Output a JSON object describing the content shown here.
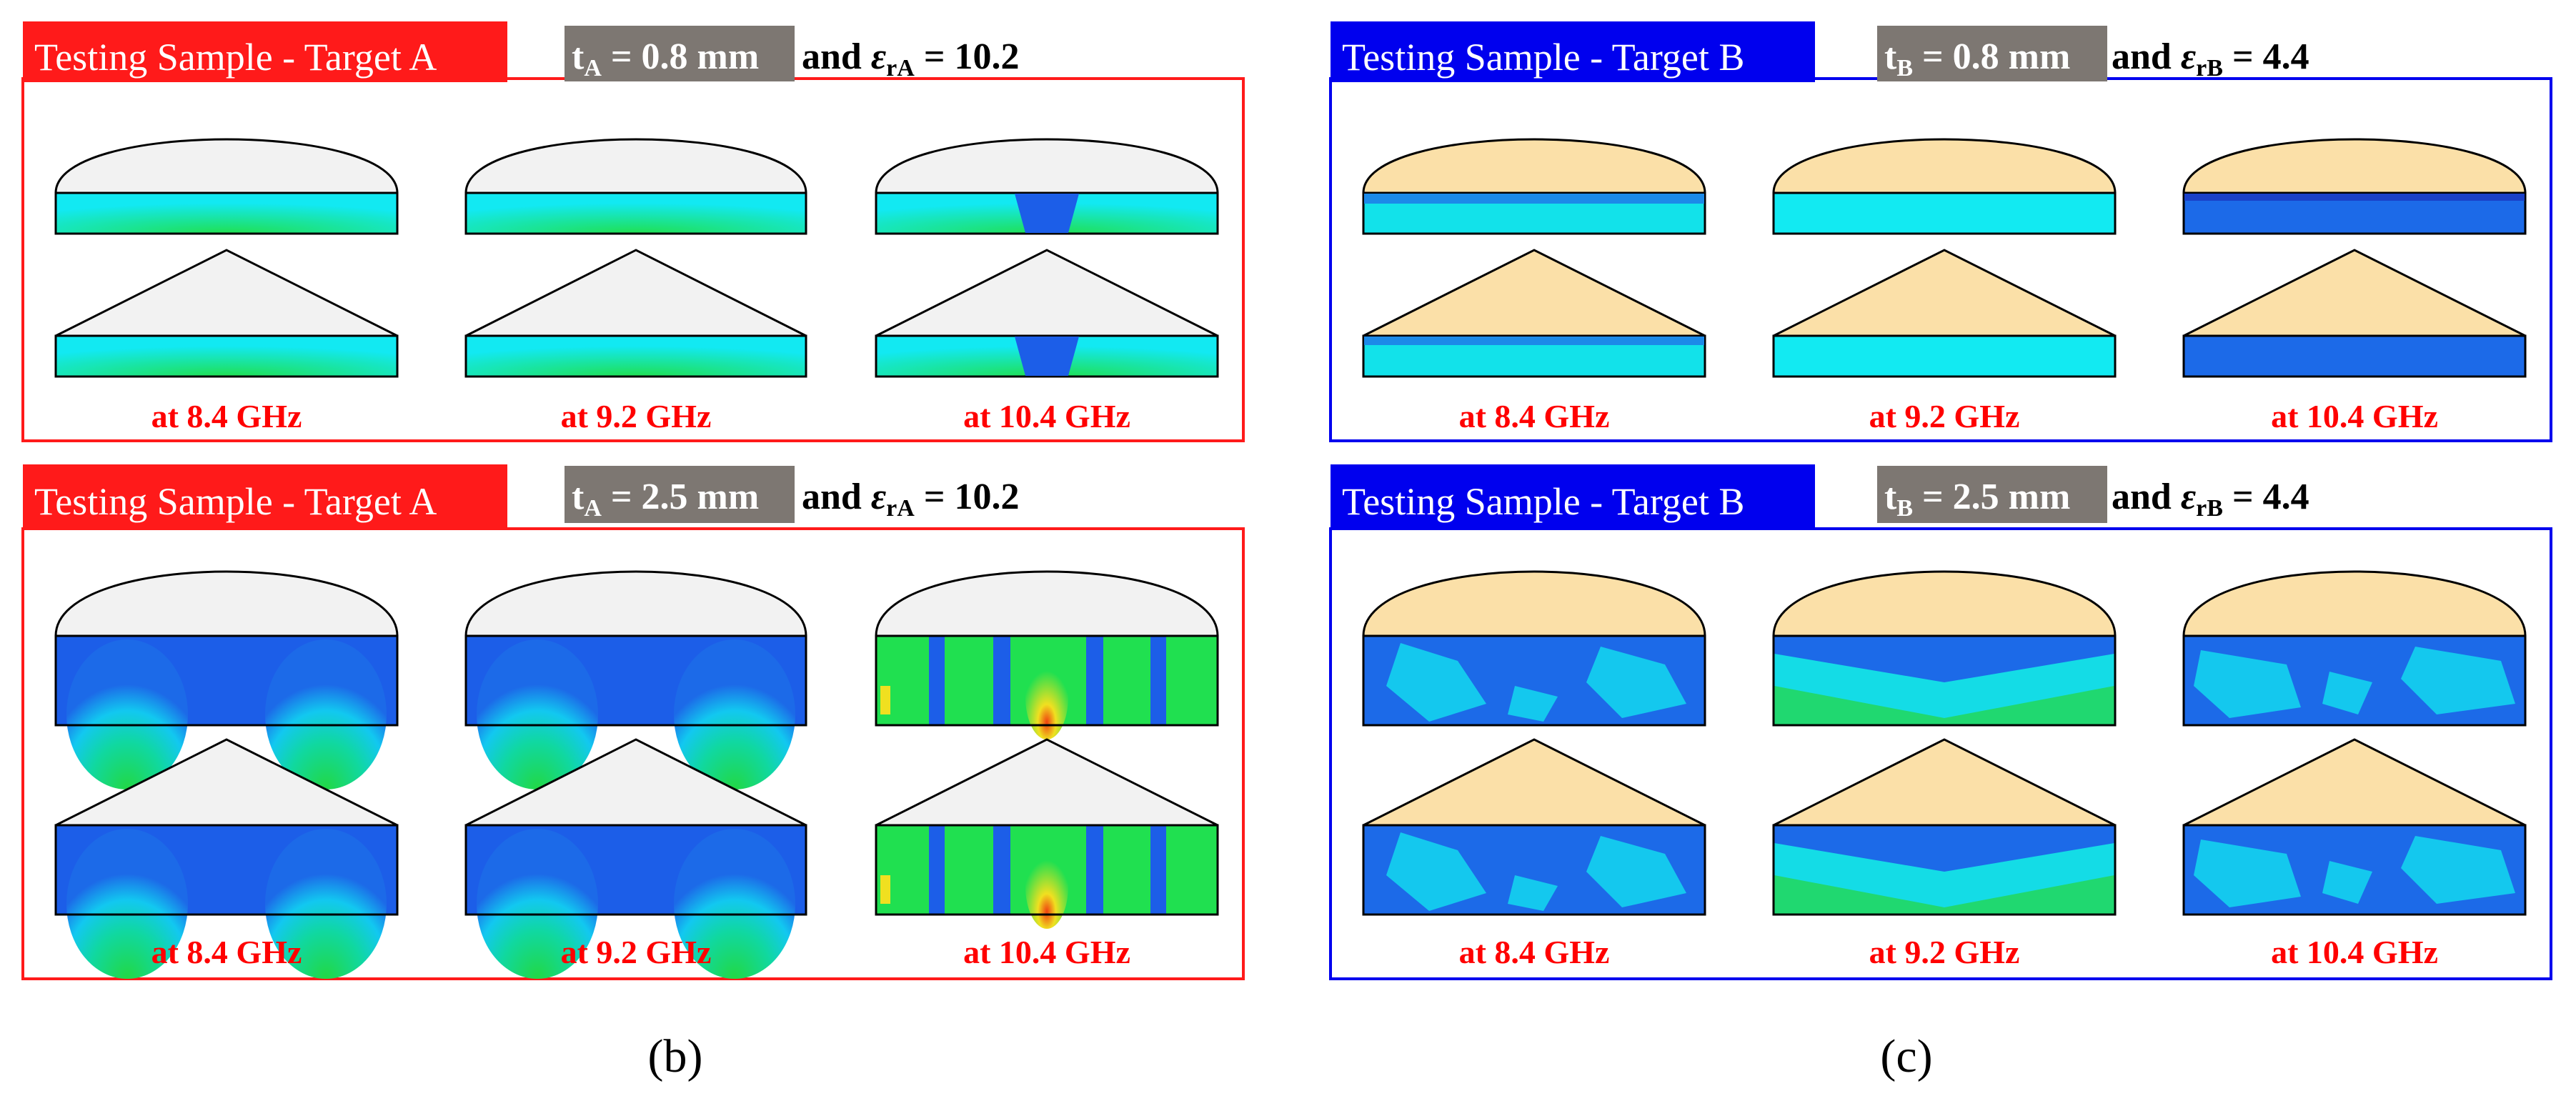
{
  "colors": {
    "target_a_border": "#ff1a1a",
    "target_b_border": "#0000ee",
    "gray_tag": "#7d7772",
    "freq_label": "#ff0000",
    "shape_a_fill": "#f2f2f2",
    "shape_b_fill": "#fbe0a8",
    "field_cyan": "#12e9f2",
    "field_blue": "#1c5ee8",
    "field_deep_blue": "#1010c8",
    "field_green": "#20e050",
    "field_yellow": "#f0e020",
    "field_red": "#f04010"
  },
  "panels": [
    {
      "id": "a_thin",
      "theme": "a",
      "title": "Testing Sample - Target A",
      "param_tag": {
        "var": "t",
        "sub": "A",
        "value": " = 0.8 mm"
      },
      "param_rest": {
        "prefix": "and ",
        "var": "ε",
        "sub": "rA",
        "value": " = 10.2"
      },
      "pattern": "thin",
      "freqs": [
        "at 8.4 GHz",
        "at 9.2 GHz",
        "at 10.4 GHz"
      ]
    },
    {
      "id": "b_thin",
      "theme": "b",
      "title": "Testing Sample - Target B",
      "param_tag": {
        "var": "t",
        "sub": "B",
        "value": " = 0.8 mm"
      },
      "param_rest": {
        "prefix": "and ",
        "var": "ε",
        "sub": "rB",
        "value": " = 4.4"
      },
      "pattern": "thin",
      "freqs": [
        "at 8.4 GHz",
        "at 9.2 GHz",
        "at 10.4 GHz"
      ]
    },
    {
      "id": "a_thick",
      "theme": "a",
      "title": "Testing Sample - Target A",
      "param_tag": {
        "var": "t",
        "sub": "A",
        "value": " = 2.5 mm"
      },
      "param_rest": {
        "prefix": "and ",
        "var": "ε",
        "sub": "rA",
        "value": " = 10.2"
      },
      "pattern": "thick",
      "freqs": [
        "at 8.4 GHz",
        "at 9.2 GHz",
        "at 10.4 GHz"
      ]
    },
    {
      "id": "b_thick",
      "theme": "b",
      "title": "Testing Sample - Target B",
      "param_tag": {
        "var": "t",
        "sub": "B",
        "value": " = 2.5 mm"
      },
      "param_rest": {
        "prefix": "and ",
        "var": "ε",
        "sub": "rB",
        "value": " = 4.4"
      },
      "pattern": "thick",
      "freqs": [
        "at 8.4 GHz",
        "at 9.2 GHz",
        "at 10.4 GHz"
      ]
    }
  ],
  "captions": [
    "(b)",
    "(c)"
  ]
}
